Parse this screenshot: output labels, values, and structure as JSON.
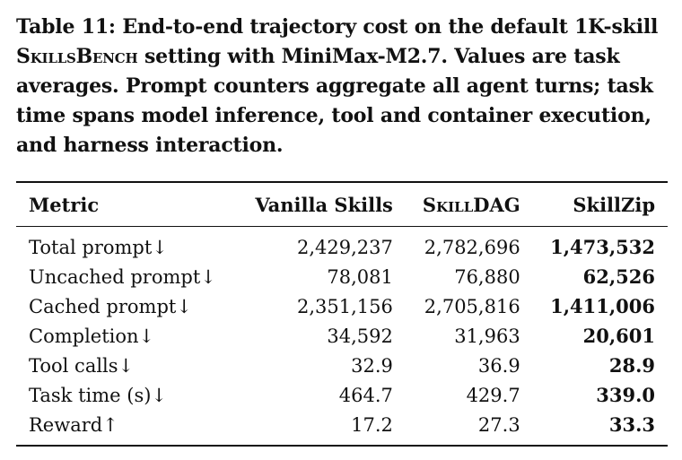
{
  "caption": {
    "label": "Table 11:",
    "text_before": "End-to-end trajectory cost on the default 1K-skill",
    "smallcaps": "SkillsBench",
    "text_after": "setting with MiniMax-M2.7. Values are task averages. Prompt counters aggregate all agent turns; task time spans model inference, tool and container execution, and harness interaction."
  },
  "table": {
    "headers": [
      "Metric",
      "Vanilla Skills",
      "SkillDAG",
      "SkillZip"
    ],
    "rows": [
      {
        "metric": "Total prompt↓",
        "vanilla": "2,429,237",
        "skilldag": "2,782,696",
        "skillzip": "1,473,532"
      },
      {
        "metric": "Uncached prompt↓",
        "vanilla": "78,081",
        "skilldag": "76,880",
        "skillzip": "62,526"
      },
      {
        "metric": "Cached prompt↓",
        "vanilla": "2,351,156",
        "skilldag": "2,705,816",
        "skillzip": "1,411,006"
      },
      {
        "metric": "Completion↓",
        "vanilla": "34,592",
        "skilldag": "31,963",
        "skillzip": "20,601"
      },
      {
        "metric": "Tool calls↓",
        "vanilla": "32.9",
        "skilldag": "36.9",
        "skillzip": "28.9"
      },
      {
        "metric": "Task time (s)↓",
        "vanilla": "464.7",
        "skilldag": "429.7",
        "skillzip": "339.0"
      },
      {
        "metric": "Reward↑",
        "vanilla": "17.2",
        "skilldag": "27.3",
        "skillzip": "33.3"
      }
    ]
  }
}
